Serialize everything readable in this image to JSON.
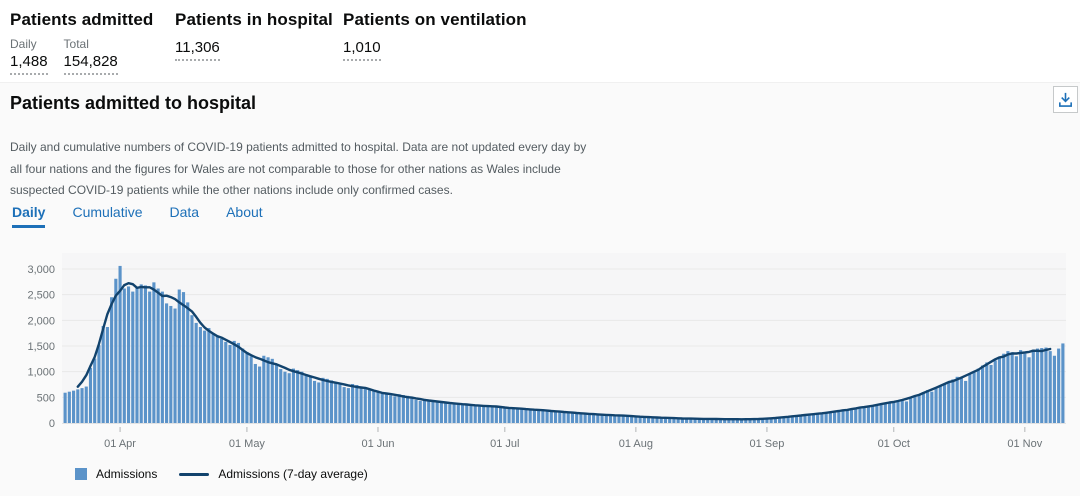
{
  "stats": {
    "patients_admitted": {
      "title": "Patients admitted",
      "metrics": [
        {
          "label": "Daily",
          "value": "1,488"
        },
        {
          "label": "Total",
          "value": "154,828"
        }
      ]
    },
    "patients_in_hospital": {
      "title": "Patients in hospital",
      "value": "11,306"
    },
    "patients_on_ventilation": {
      "title": "Patients on ventilation",
      "value": "1,010"
    }
  },
  "card": {
    "title": "Patients admitted to hospital",
    "description_lines": [
      "Daily and cumulative numbers of COVID-19 patients admitted to hospital. Data are not updated every day by",
      "all four nations and the figures for Wales are not comparable to those for other nations as Wales include",
      "suspected COVID-19 patients while the other nations include only confirmed cases."
    ],
    "tabs": [
      {
        "label": "Daily",
        "active": true
      },
      {
        "label": "Cumulative",
        "active": false
      },
      {
        "label": "Data",
        "active": false
      },
      {
        "label": "About",
        "active": false
      }
    ],
    "download_icon": "download-icon"
  },
  "legend": {
    "items": [
      {
        "label": "Admissions",
        "swatch": "square",
        "color": "#5b93c9"
      },
      {
        "label": "Admissions (7-day average)",
        "swatch": "line",
        "color": "#12436d"
      }
    ]
  },
  "colors": {
    "accent_blue": "#1d70b8",
    "bar_blue": "#5b93c9",
    "line_navy": "#12436d",
    "plot_background": "#f6f6f7",
    "gridline": "#e9e9e9",
    "axis_text": "#6b7276"
  },
  "chart_data": {
    "type": "bar",
    "grid": "horizontal",
    "legend_position": "bottom-left",
    "ylim": [
      0,
      3000
    ],
    "y_ticks": [
      0,
      500,
      1000,
      1500,
      2000,
      2500,
      3000
    ],
    "y_tick_labels": [
      "0",
      "500",
      "1,000",
      "1,500",
      "2,000",
      "2,500",
      "3,000"
    ],
    "x_ticks": [
      {
        "label": "01 Apr",
        "day_index": 13
      },
      {
        "label": "01 May",
        "day_index": 43
      },
      {
        "label": "01 Jun",
        "day_index": 74
      },
      {
        "label": "01 Jul",
        "day_index": 104
      },
      {
        "label": "01 Aug",
        "day_index": 135
      },
      {
        "label": "01 Sep",
        "day_index": 166
      },
      {
        "label": "01 Oct",
        "day_index": 196
      },
      {
        "label": "01 Nov",
        "day_index": 227
      }
    ],
    "plot_bg": "#f6f6f7",
    "series": [
      {
        "name": "Admissions",
        "type": "bar",
        "color": "#5b93c9",
        "values": [
          590,
          610,
          630,
          655,
          680,
          710,
          1075,
          1255,
          1515,
          1890,
          1870,
          2450,
          2810,
          3060,
          2620,
          2660,
          2560,
          2650,
          2700,
          2680,
          2560,
          2740,
          2620,
          2560,
          2330,
          2280,
          2230,
          2600,
          2550,
          2350,
          2100,
          1950,
          1870,
          1800,
          1850,
          1750,
          1700,
          1640,
          1580,
          1520,
          1600,
          1560,
          1450,
          1380,
          1300,
          1150,
          1100,
          1310,
          1280,
          1250,
          1150,
          1050,
          1000,
          970,
          1060,
          1030,
          1000,
          950,
          900,
          820,
          790,
          880,
          860,
          830,
          790,
          760,
          700,
          680,
          760,
          740,
          700,
          680,
          650,
          630,
          620,
          590,
          560,
          540,
          520,
          560,
          545,
          530,
          480,
          450,
          430,
          470,
          455,
          440,
          420,
          400,
          380,
          365,
          400,
          390,
          375,
          360,
          345,
          330,
          320,
          350,
          340,
          330,
          320,
          310,
          305,
          295,
          285,
          275,
          265,
          285,
          275,
          265,
          250,
          240,
          230,
          245,
          235,
          225,
          215,
          205,
          195,
          185,
          200,
          190,
          180,
          170,
          165,
          155,
          150,
          160,
          155,
          150,
          145,
          140,
          135,
          130,
          120,
          115,
          110,
          105,
          115,
          110,
          100,
          95,
          90,
          95,
          90,
          85,
          80,
          80,
          85,
          82,
          80,
          78,
          75,
          78,
          76,
          74,
          72,
          70,
          75,
          73,
          72,
          74,
          76,
          80,
          85,
          90,
          95,
          100,
          110,
          120,
          130,
          140,
          150,
          160,
          155,
          170,
          180,
          190,
          200,
          215,
          210,
          230,
          245,
          260,
          275,
          290,
          280,
          310,
          330,
          350,
          340,
          360,
          380,
          400,
          420,
          440,
          460,
          420,
          480,
          520,
          560,
          600,
          640,
          610,
          680,
          720,
          760,
          800,
          850,
          900,
          870,
          820,
          950,
          1000,
          1060,
          1120,
          1180,
          1130,
          1220,
          1280,
          1350,
          1400,
          1380,
          1300,
          1420,
          1350,
          1280,
          1430,
          1450,
          1460,
          1470,
          1400,
          1310,
          1450,
          1550
        ]
      },
      {
        "name": "Admissions (7-day average)",
        "type": "line",
        "color": "#12436d",
        "derivation": "centered 7-day moving average of Admissions"
      }
    ]
  }
}
